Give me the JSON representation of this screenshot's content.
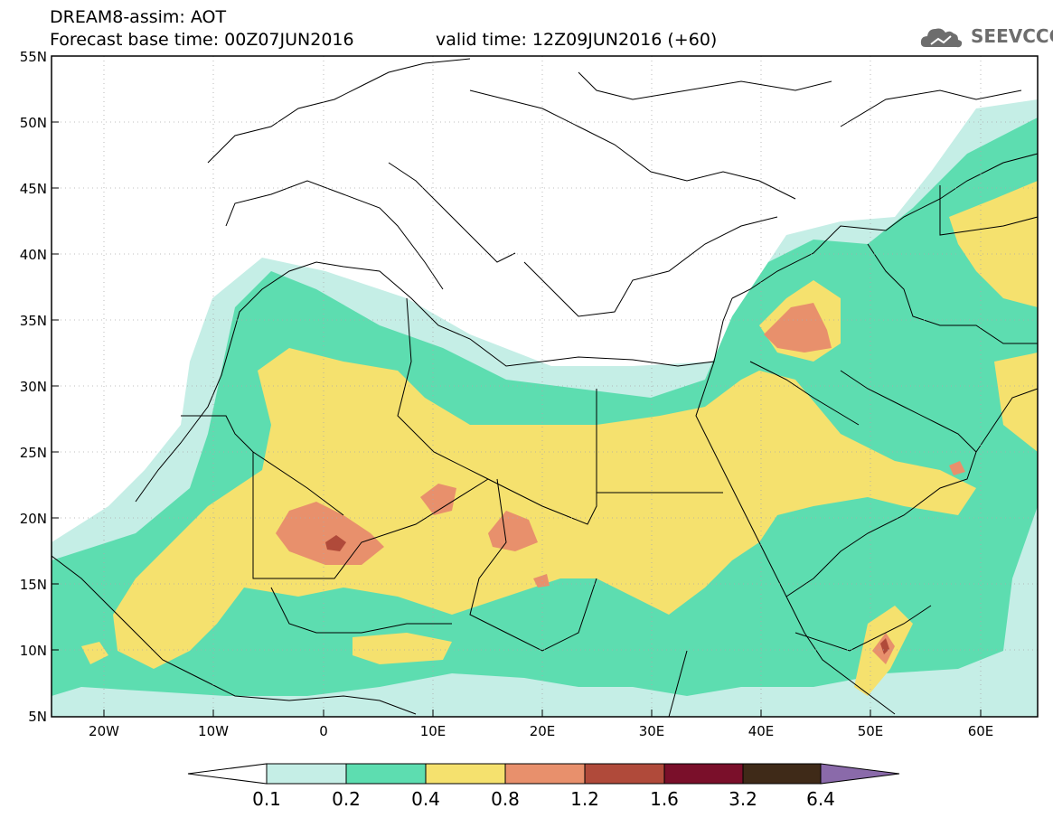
{
  "header": {
    "line1": "DREAM8-assim: AOT",
    "line2": "Forecast base time: 00Z07JUN2016",
    "valid_time": "valid time: 12Z09JUN2016 (+60)"
  },
  "logo": {
    "text": "SEEVCCC",
    "icon": "cloud-icon"
  },
  "map": {
    "lat_labels": [
      "55N",
      "50N",
      "45N",
      "40N",
      "35N",
      "30N",
      "25N",
      "20N",
      "15N",
      "10N",
      "5N"
    ],
    "lon_labels": [
      "20W",
      "10W",
      "0",
      "10E",
      "20E",
      "30E",
      "40E",
      "50E",
      "60E"
    ],
    "lat_range": [
      5,
      55
    ],
    "lon_range": [
      -25,
      65
    ],
    "grid": "dotted",
    "field": "Aerosol Optical Thickness"
  },
  "colorbar": {
    "levels": [
      "0.1",
      "0.2",
      "0.4",
      "0.8",
      "1.2",
      "1.6",
      "3.2",
      "6.4"
    ],
    "colors": [
      "#ffffff",
      "#c5eee6",
      "#5dddb0",
      "#f5e16e",
      "#e8906c",
      "#b04a3a",
      "#7a0f2a",
      "#3f2a18",
      "#8a6aaa"
    ]
  }
}
